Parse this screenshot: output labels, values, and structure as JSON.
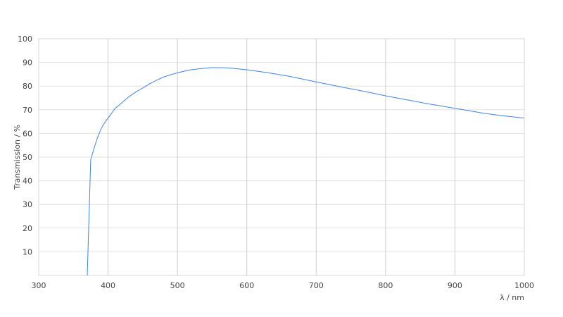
{
  "chart_data": {
    "type": "line",
    "title": "",
    "xlabel": "λ / nm",
    "ylabel": "Transmission / %",
    "xlim": [
      300,
      1000
    ],
    "ylim": [
      0,
      100
    ],
    "xticks": [
      300,
      400,
      500,
      600,
      700,
      800,
      900,
      1000
    ],
    "yticks": [
      10,
      20,
      30,
      40,
      50,
      60,
      70,
      80,
      90,
      100
    ],
    "grid": true,
    "line_color": "#3b82f6",
    "series": [
      {
        "x": [
          370,
          375,
          380,
          385,
          390,
          395,
          400,
          405,
          410,
          420,
          430,
          440,
          450,
          460,
          470,
          480,
          490,
          500,
          510,
          520,
          530,
          540,
          550,
          560,
          570,
          580,
          590,
          600,
          620,
          640,
          660,
          680,
          700,
          720,
          740,
          760,
          780,
          800,
          820,
          840,
          860,
          880,
          900,
          920,
          940,
          960,
          980,
          1000
        ],
        "y": [
          0,
          49,
          54,
          58.5,
          62,
          64.5,
          66.5,
          68.5,
          70.5,
          73,
          75.5,
          77.5,
          79.2,
          81,
          82.5,
          83.8,
          84.8,
          85.6,
          86.3,
          86.9,
          87.3,
          87.6,
          87.8,
          87.8,
          87.7,
          87.5,
          87.2,
          86.9,
          86.1,
          85.2,
          84.2,
          83.0,
          81.8,
          80.6,
          79.4,
          78.3,
          77.1,
          75.9,
          74.8,
          73.7,
          72.6,
          71.6,
          70.6,
          69.6,
          68.6,
          67.8,
          67.1,
          66.5
        ]
      }
    ]
  }
}
